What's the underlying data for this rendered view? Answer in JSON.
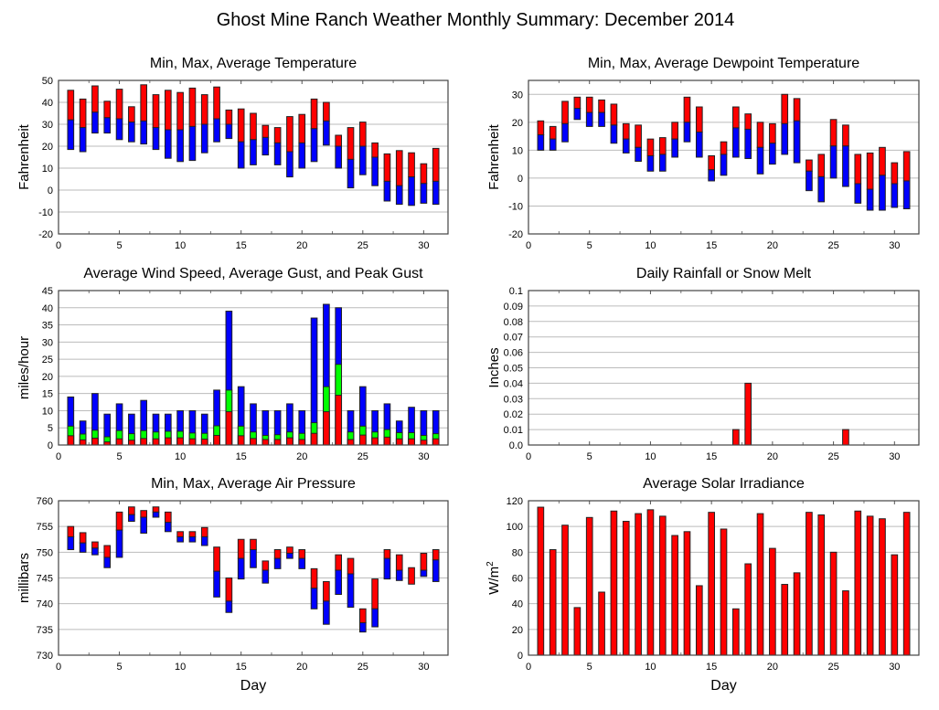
{
  "title": "Ghost Mine Ranch Weather Monthly Summary: December 2014",
  "colors": {
    "max": "#ff0000",
    "avg": "#0000ff",
    "gust": "#00ff00",
    "bar": "#ff0000",
    "grid": "#bbbbbb"
  },
  "chart_data": [
    {
      "id": "temp",
      "type": "bar",
      "subtype": "floating-range",
      "title": "Min, Max, Average Temperature",
      "xlabel": "",
      "ylabel": "Fahrenheit",
      "xlim": [
        0,
        32
      ],
      "ylim": [
        -20,
        50
      ],
      "xticks": [
        0,
        5,
        10,
        15,
        20,
        25,
        30
      ],
      "yticks": [
        -20,
        -10,
        0,
        10,
        20,
        30,
        40,
        50
      ],
      "grid": true,
      "x": [
        1,
        2,
        3,
        4,
        5,
        6,
        7,
        8,
        9,
        10,
        11,
        12,
        13,
        14,
        15,
        16,
        17,
        18,
        19,
        20,
        21,
        22,
        23,
        24,
        25,
        26,
        27,
        28,
        29,
        30,
        31
      ],
      "series": [
        {
          "name": "Min",
          "values": [
            18.5,
            17.5,
            26,
            26,
            23,
            22,
            21,
            18.5,
            14.5,
            13,
            13.5,
            17,
            22,
            23.5,
            10,
            11.5,
            16,
            11.5,
            6,
            10,
            13,
            20.5,
            10,
            1,
            7,
            2,
            -5,
            -6.5,
            -7,
            -6,
            -6.5
          ]
        },
        {
          "name": "Average",
          "values": [
            32,
            28.5,
            35.5,
            33,
            32.5,
            31,
            31.5,
            28.5,
            27.5,
            27.5,
            29,
            30,
            32.5,
            30,
            22,
            23,
            24,
            21.5,
            17.5,
            21.5,
            28,
            31.5,
            20,
            14,
            20,
            15,
            4,
            2,
            6,
            3,
            4
          ]
        },
        {
          "name": "Max",
          "values": [
            45.5,
            41.5,
            47.5,
            40.5,
            46,
            38,
            48,
            43.5,
            45.5,
            44.5,
            46.5,
            43.5,
            47,
            36.5,
            37,
            35,
            29.5,
            28.5,
            33.5,
            34.5,
            41.5,
            40,
            25,
            28.5,
            31,
            21.5,
            16.5,
            18,
            17,
            12,
            19
          ]
        }
      ]
    },
    {
      "id": "dewpoint",
      "type": "bar",
      "subtype": "floating-range",
      "title": "Min, Max, Average Dewpoint Temperature",
      "xlabel": "",
      "ylabel": "Fahrenheit",
      "xlim": [
        0,
        32
      ],
      "ylim": [
        -20,
        35
      ],
      "xticks": [
        0,
        5,
        10,
        15,
        20,
        25,
        30
      ],
      "yticks": [
        -20,
        -10,
        0,
        10,
        20,
        30
      ],
      "grid": true,
      "x": [
        1,
        2,
        3,
        4,
        5,
        6,
        7,
        8,
        9,
        10,
        11,
        12,
        13,
        14,
        15,
        16,
        17,
        18,
        19,
        20,
        21,
        22,
        23,
        24,
        25,
        26,
        27,
        28,
        29,
        30,
        31
      ],
      "series": [
        {
          "name": "Min",
          "values": [
            10,
            10,
            13,
            21,
            18.5,
            18.5,
            12.5,
            9,
            6,
            2.5,
            2.5,
            7.5,
            13,
            7.5,
            -1,
            1,
            7.5,
            7,
            1.5,
            5,
            8.5,
            5.5,
            -4.5,
            -8.5,
            0,
            -3,
            -9,
            -11.5,
            -11.5,
            -10.5,
            -11
          ]
        },
        {
          "name": "Average",
          "values": [
            15.5,
            14,
            19.5,
            25,
            23.5,
            23.5,
            19,
            14,
            11,
            8,
            8.5,
            14,
            20,
            16.5,
            3,
            8.5,
            18,
            17.5,
            11,
            12.5,
            19.5,
            20.5,
            2.5,
            0.5,
            11.5,
            11.5,
            -2,
            -4,
            1,
            -2,
            -1
          ]
        },
        {
          "name": "Max",
          "values": [
            20.5,
            18.5,
            27.5,
            29,
            29,
            28,
            26.5,
            19.5,
            19,
            14,
            14.5,
            20,
            29,
            25.5,
            8,
            13,
            25.5,
            23,
            20,
            19.5,
            30,
            28.5,
            6.5,
            8.5,
            21,
            19,
            8.5,
            9,
            11,
            5.5,
            9.5
          ]
        }
      ]
    },
    {
      "id": "wind",
      "type": "bar",
      "subtype": "overlaid",
      "title": "Average Wind Speed, Average Gust, and Peak Gust",
      "xlabel": "",
      "ylabel": "miles/hour",
      "xlim": [
        0,
        32
      ],
      "ylim": [
        0,
        45
      ],
      "xticks": [
        0,
        5,
        10,
        15,
        20,
        25,
        30
      ],
      "yticks": [
        0,
        5,
        10,
        15,
        20,
        25,
        30,
        35,
        40,
        45
      ],
      "grid": true,
      "x": [
        1,
        2,
        3,
        4,
        5,
        6,
        7,
        8,
        9,
        10,
        11,
        12,
        13,
        14,
        15,
        16,
        17,
        18,
        19,
        20,
        21,
        22,
        23,
        24,
        25,
        26,
        27,
        28,
        29,
        30,
        31
      ],
      "series": [
        {
          "name": "Peak Gust",
          "values": [
            14,
            7,
            15,
            9,
            12,
            9,
            13,
            9,
            9,
            10,
            10,
            9,
            16,
            39,
            17,
            12,
            10,
            10,
            12,
            10,
            37,
            41,
            40,
            10,
            17,
            10,
            12,
            7,
            11,
            10,
            10
          ]
        },
        {
          "name": "Average Gust",
          "values": [
            5.5,
            3.2,
            4.3,
            2.4,
            4.2,
            3.3,
            4.2,
            3.8,
            4,
            4,
            3.5,
            3.4,
            5.6,
            16,
            5.5,
            3.8,
            2.8,
            3,
            3.8,
            3.4,
            6.5,
            17,
            23.5,
            3.8,
            5.5,
            3.8,
            4.5,
            3.6,
            3.6,
            2.8,
            3.3
          ]
        },
        {
          "name": "Average Wind Speed",
          "values": [
            2.7,
            1.5,
            2,
            0.9,
            1.8,
            1.4,
            1.9,
            1.8,
            2.1,
            2.1,
            1.8,
            1.7,
            2.8,
            9.7,
            2.7,
            1.9,
            1.6,
            1.6,
            2.1,
            1.6,
            3.4,
            9.7,
            14.5,
            1.6,
            2.9,
            2.1,
            2.3,
            1.8,
            1.8,
            1.4,
            1.8
          ]
        }
      ]
    },
    {
      "id": "rain",
      "type": "bar",
      "title": "Daily Rainfall or Snow Melt",
      "xlabel": "",
      "ylabel": "Inches",
      "xlim": [
        0,
        32
      ],
      "ylim": [
        0,
        0.1
      ],
      "xticks": [
        0,
        5,
        10,
        15,
        20,
        25,
        30
      ],
      "yticks": [
        0.0,
        0.01,
        0.02,
        0.03,
        0.04,
        0.05,
        0.06,
        0.07,
        0.08,
        0.09,
        0.1
      ],
      "ytick_labels": [
        "0.0",
        "0.01",
        "0.02",
        "0.03",
        "0.04",
        "0.05",
        "0.06",
        "0.07",
        "0.08",
        "0.09",
        "0.1"
      ],
      "grid": true,
      "x": [
        17,
        18,
        26
      ],
      "values": [
        0.01,
        0.04,
        0.01
      ]
    },
    {
      "id": "pressure",
      "type": "bar",
      "subtype": "floating-range",
      "title": "Min, Max, Average Air Pressure",
      "xlabel": "Day",
      "ylabel": "millibars",
      "xlim": [
        0,
        32
      ],
      "ylim": [
        730,
        760
      ],
      "xticks": [
        0,
        5,
        10,
        15,
        20,
        25,
        30
      ],
      "yticks": [
        730,
        735,
        740,
        745,
        750,
        755,
        760
      ],
      "grid": true,
      "x": [
        1,
        2,
        3,
        4,
        5,
        6,
        7,
        8,
        9,
        10,
        11,
        12,
        13,
        14,
        15,
        16,
        17,
        18,
        19,
        20,
        21,
        22,
        23,
        24,
        25,
        26,
        27,
        28,
        29,
        30,
        31
      ],
      "series": [
        {
          "name": "Min",
          "values": [
            750.5,
            750,
            749.5,
            747,
            749,
            756,
            753.7,
            756.8,
            754,
            752,
            752,
            751.3,
            741.3,
            738.3,
            744.8,
            747,
            744,
            746.8,
            748.8,
            746.8,
            739,
            736,
            741.8,
            739.3,
            734.5,
            735.5,
            744.8,
            744.5,
            743.8,
            745.3,
            744.3
          ]
        },
        {
          "name": "Average",
          "values": [
            753,
            751.8,
            750.8,
            749,
            754.3,
            757.3,
            756.8,
            757.8,
            755.8,
            753,
            753,
            753,
            746.3,
            740.5,
            748.8,
            750.5,
            746.5,
            748.8,
            749.8,
            748.8,
            743,
            740.5,
            746.5,
            745.8,
            736.3,
            739,
            748.8,
            746.5,
            743.8,
            746.5,
            748.5
          ]
        },
        {
          "name": "Max",
          "values": [
            755,
            753.8,
            752,
            751.3,
            757.8,
            758.8,
            758.1,
            758.8,
            757.8,
            754,
            754,
            754.8,
            751,
            745,
            752.5,
            752.5,
            748.3,
            750.5,
            751,
            750.5,
            746.8,
            744.3,
            749.5,
            748.8,
            739,
            744.8,
            750.5,
            749.5,
            747,
            749.8,
            750.5
          ]
        }
      ]
    },
    {
      "id": "solar",
      "type": "bar",
      "title": "Average Solar Irradiance",
      "xlabel": "Day",
      "ylabel": "W/m²",
      "xlim": [
        0,
        32
      ],
      "ylim": [
        0,
        120
      ],
      "xticks": [
        0,
        5,
        10,
        15,
        20,
        25,
        30
      ],
      "yticks": [
        0,
        20,
        40,
        60,
        80,
        100,
        120
      ],
      "grid": true,
      "x": [
        1,
        2,
        3,
        4,
        5,
        6,
        7,
        8,
        9,
        10,
        11,
        12,
        13,
        14,
        15,
        16,
        17,
        18,
        19,
        20,
        21,
        22,
        23,
        24,
        25,
        26,
        27,
        28,
        29,
        30,
        31
      ],
      "values": [
        115,
        82,
        101,
        37,
        107,
        49,
        112,
        104,
        110,
        113,
        108,
        93,
        96,
        54,
        111,
        98,
        36,
        71,
        110,
        83,
        55,
        64,
        111,
        109,
        80,
        50,
        112,
        108,
        106,
        78,
        111
      ]
    }
  ]
}
